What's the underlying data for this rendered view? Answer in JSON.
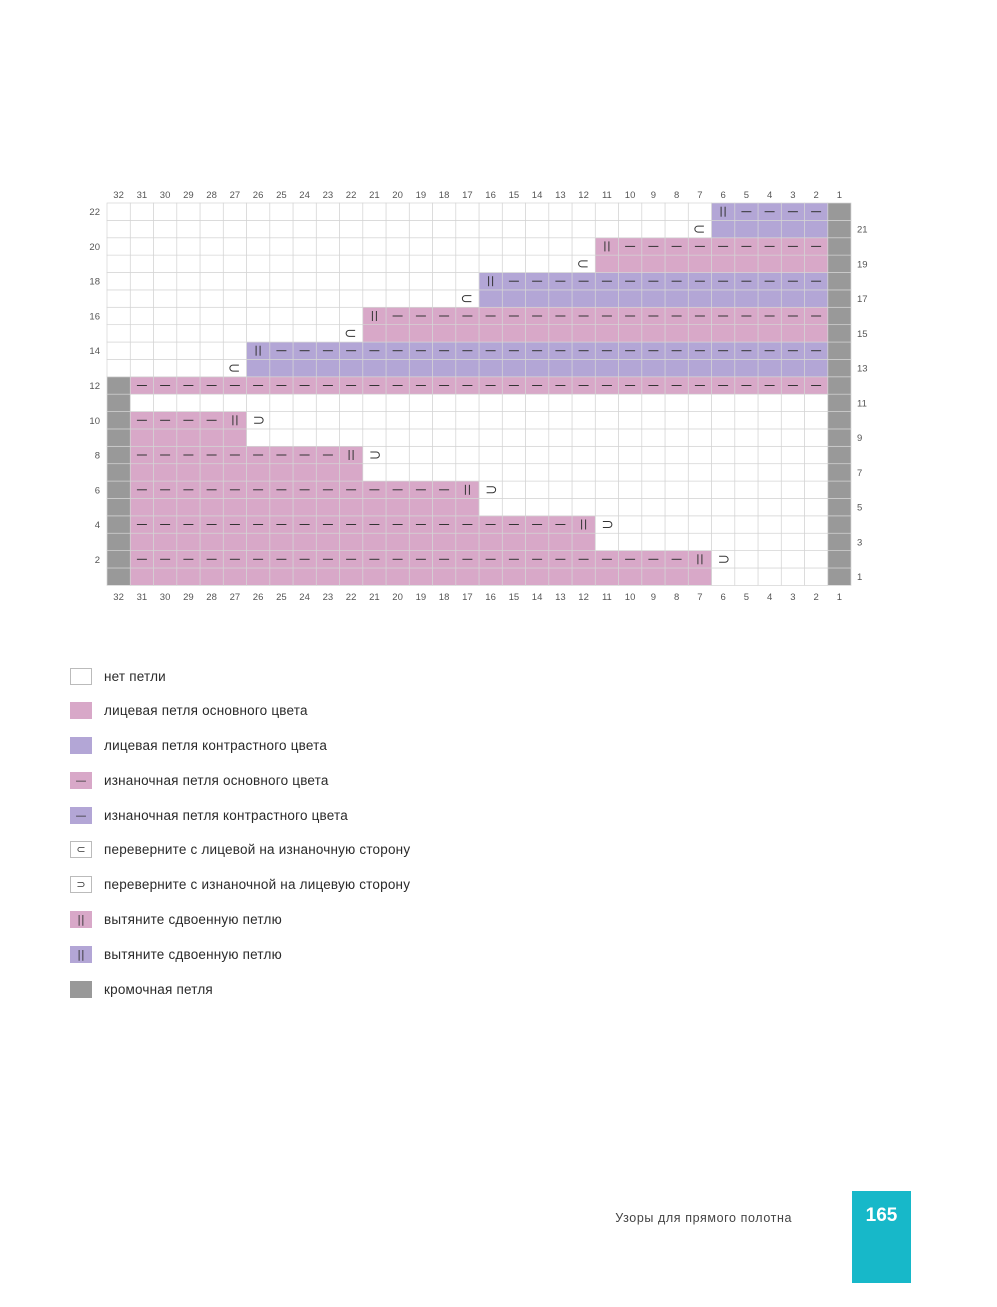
{
  "chart_data": {
    "type": "table",
    "stitch_cols": 32,
    "rows_count": 22,
    "col_labels": [
      "32",
      "31",
      "30",
      "29",
      "28",
      "27",
      "26",
      "25",
      "24",
      "23",
      "22",
      "21",
      "20",
      "19",
      "18",
      "17",
      "16",
      "15",
      "14",
      "13",
      "12",
      "11",
      "10",
      "9",
      "8",
      "7",
      "6",
      "5",
      "4",
      "3",
      "2",
      "1"
    ],
    "row_labels_left": [
      "22",
      "20",
      "18",
      "16",
      "14",
      "12",
      "10",
      "8",
      "6",
      "4",
      "2"
    ],
    "row_labels_right": [
      "21",
      "19",
      "17",
      "15",
      "13",
      "11",
      "9",
      "7",
      "5",
      "3",
      "1"
    ],
    "colors": {
      "none": "#ffffff",
      "main": "#d8a8c8",
      "contrast": "#b3a6d6",
      "edge": "#999999",
      "grid": "#d4d4d4"
    }
  },
  "legend": [
    {
      "key": "none",
      "label": "нет петли",
      "symbol": ""
    },
    {
      "key": "main",
      "label": "лицевая петля основного цвета",
      "symbol": ""
    },
    {
      "key": "contrast",
      "label": "лицевая петля контрастного цвета",
      "symbol": ""
    },
    {
      "key": "main",
      "label": "изнаночная петля основного цвета",
      "symbol": "—"
    },
    {
      "key": "contrast",
      "label": "изнаночная петля контрастного цвета",
      "symbol": "—"
    },
    {
      "key": "none",
      "label": "переверните с лицевой на изнаночную сторону",
      "symbol": "⊂"
    },
    {
      "key": "none",
      "label": "переверните с изнаночной на лицевую сторону",
      "symbol": "⊃"
    },
    {
      "key": "main",
      "label": "вытяните сдвоенную петлю",
      "symbol": "||"
    },
    {
      "key": "contrast",
      "label": "вытяните сдвоенную петлю",
      "symbol": "||"
    },
    {
      "key": "edge",
      "label": "кромочная петля",
      "symbol": ""
    }
  ],
  "footer": {
    "title": "Узоры для прямого полотна",
    "page_number": "165"
  }
}
